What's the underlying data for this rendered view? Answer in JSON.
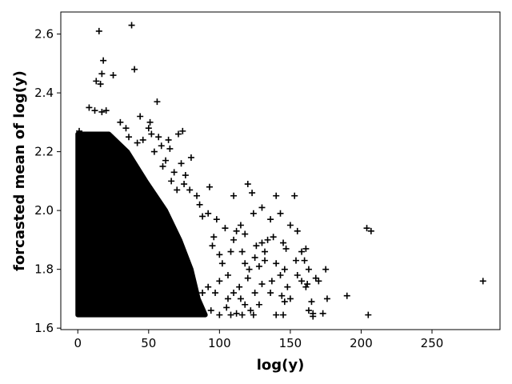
{
  "chart_data": {
    "type": "scatter",
    "marker": "+",
    "marker_color": "#000000",
    "xlabel": "log(y)",
    "ylabel": "forcasted mean of log(y)",
    "xlim": [
      -12,
      298
    ],
    "ylim": [
      1.595,
      2.675
    ],
    "xticks": [
      0,
      50,
      100,
      150,
      200,
      250
    ],
    "yticks": [
      1.6,
      1.8,
      2.0,
      2.2,
      2.4,
      2.6
    ],
    "xtick_labels": [
      "0",
      "50",
      "100",
      "150",
      "200",
      "250"
    ],
    "ytick_labels": [
      "1.6",
      "1.8",
      "2.0",
      "2.2",
      "2.4",
      "2.6"
    ],
    "grid": false,
    "legend": "none",
    "dense_region": {
      "description": "very dense cloud of points near the origin; right boundary in x decreases as y increases",
      "x_min": 0,
      "y_min": 1.645,
      "y_max": 2.26,
      "boundary": [
        [
          90,
          1.645
        ],
        [
          85,
          1.7
        ],
        [
          80,
          1.8
        ],
        [
          72,
          1.9
        ],
        [
          62,
          2.0
        ],
        [
          48,
          2.1
        ],
        [
          35,
          2.2
        ],
        [
          22,
          2.26
        ]
      ]
    },
    "points": [
      [
        15,
        2.61
      ],
      [
        38,
        2.63
      ],
      [
        18,
        2.51
      ],
      [
        40,
        2.48
      ],
      [
        17,
        2.465
      ],
      [
        13,
        2.44
      ],
      [
        16,
        2.43
      ],
      [
        25,
        2.46
      ],
      [
        8,
        2.35
      ],
      [
        12,
        2.34
      ],
      [
        17,
        2.335
      ],
      [
        20,
        2.34
      ],
      [
        56,
        2.37
      ],
      [
        44,
        2.32
      ],
      [
        51,
        2.3
      ],
      [
        50,
        2.28
      ],
      [
        34,
        2.28
      ],
      [
        1,
        2.27
      ],
      [
        57,
        2.25
      ],
      [
        64,
        2.24
      ],
      [
        74,
        2.27
      ],
      [
        71,
        2.26
      ],
      [
        65,
        2.21
      ],
      [
        59,
        2.22
      ],
      [
        54,
        2.2
      ],
      [
        42,
        2.23
      ],
      [
        80,
        2.18
      ],
      [
        73,
        2.16
      ],
      [
        76,
        2.12
      ],
      [
        68,
        2.13
      ],
      [
        75,
        2.09
      ],
      [
        79,
        2.07
      ],
      [
        93,
        2.08
      ],
      [
        110,
        2.05
      ],
      [
        120,
        2.09
      ],
      [
        123,
        2.06
      ],
      [
        140,
        2.05
      ],
      [
        153,
        2.05
      ],
      [
        130,
        2.01
      ],
      [
        124,
        1.99
      ],
      [
        143,
        1.99
      ],
      [
        136,
        1.97
      ],
      [
        150,
        1.95
      ],
      [
        155,
        1.93
      ],
      [
        115,
        1.95
      ],
      [
        112,
        1.93
      ],
      [
        118,
        1.92
      ],
      [
        134,
        1.9
      ],
      [
        138,
        1.91
      ],
      [
        145,
        1.89
      ],
      [
        130,
        1.89
      ],
      [
        126,
        1.88
      ],
      [
        132,
        1.86
      ],
      [
        147,
        1.87
      ],
      [
        158,
        1.86
      ],
      [
        161,
        1.87
      ],
      [
        160,
        1.83
      ],
      [
        154,
        1.83
      ],
      [
        140,
        1.82
      ],
      [
        132,
        1.83
      ],
      [
        125,
        1.84
      ],
      [
        128,
        1.81
      ],
      [
        121,
        1.8
      ],
      [
        146,
        1.8
      ],
      [
        163,
        1.8
      ],
      [
        175,
        1.8
      ],
      [
        143,
        1.78
      ],
      [
        137,
        1.76
      ],
      [
        130,
        1.75
      ],
      [
        155,
        1.78
      ],
      [
        158,
        1.76
      ],
      [
        162,
        1.75
      ],
      [
        168,
        1.77
      ],
      [
        170,
        1.76
      ],
      [
        148,
        1.74
      ],
      [
        136,
        1.72
      ],
      [
        144,
        1.71
      ],
      [
        150,
        1.7
      ],
      [
        146,
        1.69
      ],
      [
        161,
        1.74
      ],
      [
        165,
        1.69
      ],
      [
        163,
        1.66
      ],
      [
        166,
        1.65
      ],
      [
        176,
        1.7
      ],
      [
        190,
        1.71
      ],
      [
        173,
        1.65
      ],
      [
        145,
        1.645
      ],
      [
        166,
        1.64
      ],
      [
        204,
        1.94
      ],
      [
        207,
        1.93
      ],
      [
        205,
        1.645
      ],
      [
        286,
        1.76
      ],
      [
        100,
        1.76
      ],
      [
        110,
        1.72
      ],
      [
        115,
        1.7
      ],
      [
        118,
        1.68
      ],
      [
        105,
        1.67
      ],
      [
        112,
        1.65
      ],
      [
        122,
        1.66
      ],
      [
        128,
        1.68
      ],
      [
        102,
        1.82
      ],
      [
        108,
        1.86
      ],
      [
        96,
        1.91
      ],
      [
        104,
        1.94
      ],
      [
        98,
        1.97
      ],
      [
        88,
        1.98
      ],
      [
        92,
        1.99
      ],
      [
        86,
        2.02
      ],
      [
        84,
        2.05
      ],
      [
        95,
        1.88
      ],
      [
        100,
        1.85
      ],
      [
        106,
        1.78
      ],
      [
        114,
        1.74
      ],
      [
        120,
        1.77
      ],
      [
        125,
        1.72
      ],
      [
        118,
        1.82
      ],
      [
        116,
        1.86
      ],
      [
        110,
        1.9
      ],
      [
        106,
        1.7
      ],
      [
        97,
        1.72
      ],
      [
        92,
        1.74
      ],
      [
        88,
        1.72
      ],
      [
        94,
        1.66
      ],
      [
        100,
        1.645
      ],
      [
        108,
        1.645
      ],
      [
        116,
        1.645
      ],
      [
        124,
        1.645
      ],
      [
        140,
        1.645
      ],
      [
        60,
        2.15
      ],
      [
        66,
        2.1
      ],
      [
        70,
        2.07
      ],
      [
        62,
        2.17
      ],
      [
        46,
        2.24
      ],
      [
        52,
        2.26
      ],
      [
        30,
        2.3
      ],
      [
        36,
        2.25
      ]
    ]
  }
}
